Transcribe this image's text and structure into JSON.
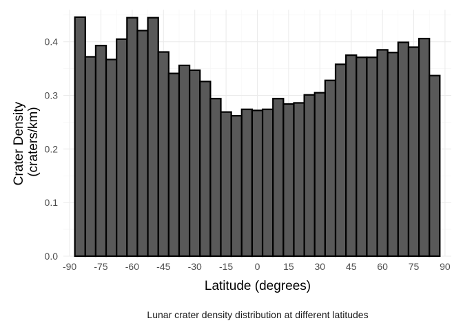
{
  "chart_data": {
    "type": "bar",
    "title": "",
    "caption": "Lunar crater density distribution at different latitudes",
    "xlabel": "Latitude (degrees)",
    "ylabel_lines": [
      "Crater Density",
      "(craters/km)"
    ],
    "xlim": [
      -93,
      93
    ],
    "ylim": [
      0,
      0.46
    ],
    "x_ticks": [
      -90,
      -75,
      -60,
      -45,
      -30,
      -15,
      0,
      15,
      30,
      45,
      60,
      75,
      90
    ],
    "y_ticks": [
      0.0,
      0.1,
      0.2,
      0.3,
      0.4
    ],
    "y_tick_labels": [
      "0.0",
      "0.1",
      "0.2",
      "0.3",
      "0.4"
    ],
    "bin_width": 5,
    "bin_centers": [
      -85,
      -80,
      -75,
      -70,
      -65,
      -60,
      -55,
      -50,
      -45,
      -40,
      -35,
      -30,
      -25,
      -20,
      -15,
      -10,
      -5,
      0,
      5,
      10,
      15,
      20,
      25,
      30,
      35,
      40,
      45,
      50,
      55,
      60,
      65,
      70,
      75,
      80,
      85
    ],
    "values": [
      0.446,
      0.372,
      0.393,
      0.367,
      0.405,
      0.445,
      0.421,
      0.445,
      0.381,
      0.341,
      0.356,
      0.347,
      0.326,
      0.294,
      0.269,
      0.262,
      0.274,
      0.272,
      0.274,
      0.294,
      0.284,
      0.286,
      0.301,
      0.305,
      0.328,
      0.358,
      0.375,
      0.371,
      0.371,
      0.385,
      0.38,
      0.399,
      0.39,
      0.406,
      0.337
    ],
    "bar_fill": "#595959",
    "bar_stroke": "#000000",
    "grid": true,
    "grid_major_color": "#ebebeb",
    "grid_minor_color": "#f5f5f5",
    "theme": "minimal",
    "legend": "none"
  }
}
